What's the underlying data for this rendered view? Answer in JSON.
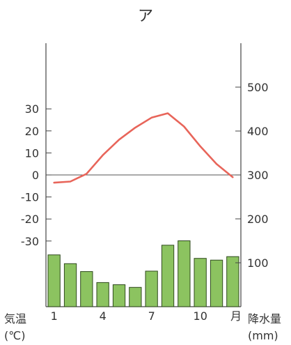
{
  "chart_data": {
    "type": "bar+line",
    "title": "ア",
    "x": [
      1,
      2,
      3,
      4,
      5,
      6,
      7,
      8,
      9,
      10,
      11,
      12
    ],
    "x_tick_labels": [
      "1",
      "4",
      "7",
      "10"
    ],
    "x_unit": "月",
    "series": [
      {
        "kind": "line",
        "axis": "left",
        "color": "#e8655a",
        "values": [
          -3.5,
          -3.0,
          0.5,
          9.0,
          16.0,
          21.5,
          26.0,
          28.0,
          22.0,
          13.0,
          5.0,
          -1.0
        ]
      },
      {
        "kind": "bar",
        "axis": "right",
        "color": "#8cc360",
        "values": [
          118,
          98,
          80,
          55,
          50,
          44,
          81,
          140,
          150,
          110,
          106,
          114
        ]
      }
    ],
    "left_axis": {
      "label_line1": "気温",
      "label_line2": "(℃)",
      "ticks": [
        30,
        20,
        10,
        0,
        -10,
        -20,
        -30
      ],
      "tick_labels": [
        "30",
        "20",
        "10",
        "0",
        "-10",
        "-20",
        "-30"
      ],
      "range": [
        -40,
        40
      ]
    },
    "right_axis": {
      "label_line1": "降水量",
      "label_line2": "(mm)",
      "ticks": [
        500,
        400,
        300,
        200,
        100
      ],
      "tick_labels": [
        "500",
        "400",
        "300",
        "200",
        "100"
      ],
      "range": [
        0,
        600
      ]
    },
    "zero_line": true,
    "grid": false
  }
}
